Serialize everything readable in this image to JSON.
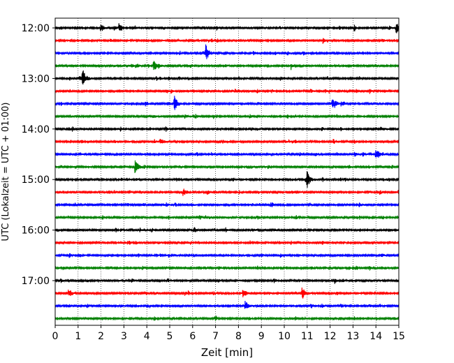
{
  "chart_data": {
    "type": "line",
    "subtype": "helicorder",
    "xlabel": "Zeit  [min]",
    "ylabel": "UTC (Lokalzeit = UTC + 01:00)",
    "xlim": [
      0,
      15
    ],
    "x_ticks": [
      0,
      1,
      2,
      3,
      4,
      5,
      6,
      7,
      8,
      9,
      10,
      11,
      12,
      13,
      14,
      15
    ],
    "y_tick_labels": [
      "12:00",
      "13:00",
      "14:00",
      "15:00",
      "16:00",
      "17:00"
    ],
    "vertical_grid": true,
    "trace_interval_min": 15,
    "trace_color_cycle": [
      "#000000",
      "#ff0000",
      "#0000ff",
      "#008000"
    ],
    "trace_count": 24,
    "trace_starts": [
      "12:00",
      "12:15",
      "12:30",
      "12:45",
      "13:00",
      "13:15",
      "13:30",
      "13:45",
      "14:00",
      "14:15",
      "14:30",
      "14:45",
      "15:00",
      "15:15",
      "15:30",
      "15:45",
      "16:00",
      "16:15",
      "16:30",
      "16:45",
      "17:00",
      "17:15",
      "17:30",
      "17:45"
    ],
    "events": [
      {
        "trace": 0,
        "minute": 2.0,
        "amp": 0.35
      },
      {
        "trace": 0,
        "minute": 2.8,
        "amp": 0.45
      },
      {
        "trace": 0,
        "minute": 14.9,
        "amp": 0.5
      },
      {
        "trace": 2,
        "minute": 6.6,
        "amp": 0.45
      },
      {
        "trace": 3,
        "minute": 4.3,
        "amp": 0.55
      },
      {
        "trace": 4,
        "minute": 1.2,
        "amp": 0.9
      },
      {
        "trace": 6,
        "minute": 5.2,
        "amp": 0.8
      },
      {
        "trace": 6,
        "minute": 12.1,
        "amp": 0.4
      },
      {
        "trace": 9,
        "minute": 4.6,
        "amp": 0.25
      },
      {
        "trace": 10,
        "minute": 14.0,
        "amp": 0.45
      },
      {
        "trace": 11,
        "minute": 3.5,
        "amp": 0.6
      },
      {
        "trace": 12,
        "minute": 11.0,
        "amp": 0.7
      },
      {
        "trace": 13,
        "minute": 5.6,
        "amp": 0.35
      },
      {
        "trace": 21,
        "minute": 8.2,
        "amp": 0.45
      },
      {
        "trace": 21,
        "minute": 10.8,
        "amp": 0.5
      },
      {
        "trace": 22,
        "minute": 8.3,
        "amp": 0.4
      }
    ]
  }
}
